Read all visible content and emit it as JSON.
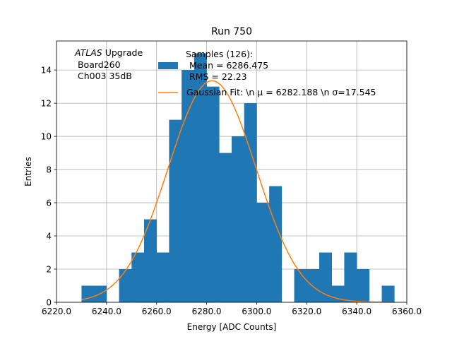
{
  "chart_data": {
    "type": "bar",
    "title": "Run 750",
    "xlabel": "Energy [ADC Counts]",
    "ylabel": "Entries",
    "xlim": [
      6220,
      6360
    ],
    "ylim": [
      0,
      15.75
    ],
    "xticks": [
      6220,
      6240,
      6260,
      6280,
      6300,
      6320,
      6340,
      6360
    ],
    "xtick_labels": [
      "6220.0",
      "6240.0",
      "6260.0",
      "6280.0",
      "6300.0",
      "6320.0",
      "6340.0",
      "6360.0"
    ],
    "yticks": [
      0,
      2,
      4,
      6,
      8,
      10,
      12,
      14
    ],
    "ytick_labels": [
      "0",
      "2",
      "4",
      "6",
      "8",
      "10",
      "12",
      "14"
    ],
    "grid": true,
    "bin_width": 5,
    "bins": [
      {
        "x": 6230,
        "count": 1
      },
      {
        "x": 6235,
        "count": 1
      },
      {
        "x": 6245,
        "count": 2
      },
      {
        "x": 6250,
        "count": 3
      },
      {
        "x": 6255,
        "count": 5
      },
      {
        "x": 6260,
        "count": 3
      },
      {
        "x": 6265,
        "count": 11
      },
      {
        "x": 6270,
        "count": 14
      },
      {
        "x": 6275,
        "count": 15
      },
      {
        "x": 6280,
        "count": 13
      },
      {
        "x": 6285,
        "count": 9
      },
      {
        "x": 6290,
        "count": 10
      },
      {
        "x": 6295,
        "count": 12
      },
      {
        "x": 6300,
        "count": 6
      },
      {
        "x": 6305,
        "count": 7
      },
      {
        "x": 6315,
        "count": 2
      },
      {
        "x": 6320,
        "count": 2
      },
      {
        "x": 6325,
        "count": 3
      },
      {
        "x": 6330,
        "count": 1
      },
      {
        "x": 6335,
        "count": 3
      },
      {
        "x": 6340,
        "count": 2
      },
      {
        "x": 6345,
        "count": 0
      },
      {
        "x": 6350,
        "count": 1
      }
    ],
    "fit": {
      "type": "gaussian",
      "mu": 6282.188,
      "sigma": 17.545,
      "amplitude": 13.35,
      "x_range": [
        6230,
        6355
      ]
    },
    "series": [
      {
        "name": "histogram",
        "color": "#1f77b4"
      },
      {
        "name": "gaussian-fit",
        "color": "#ff7f0e"
      }
    ],
    "legend": {
      "position": "top-right",
      "entries": [
        {
          "lines": [
            "Samples (126):",
            "Mean = 6286.475",
            "RMS = 22.23"
          ],
          "color": "#1f77b4",
          "marker": "patch"
        },
        {
          "lines": [
            "Gaussian Fit: \\n μ = 6282.188 \\n σ=17.545"
          ],
          "color": "#ff7f0e",
          "marker": "line"
        }
      ]
    },
    "annotation": {
      "line1_italic": "ATLAS",
      "line1_rest": " Upgrade",
      "line2": " Board260",
      "line3": " Ch003 35dB"
    }
  }
}
